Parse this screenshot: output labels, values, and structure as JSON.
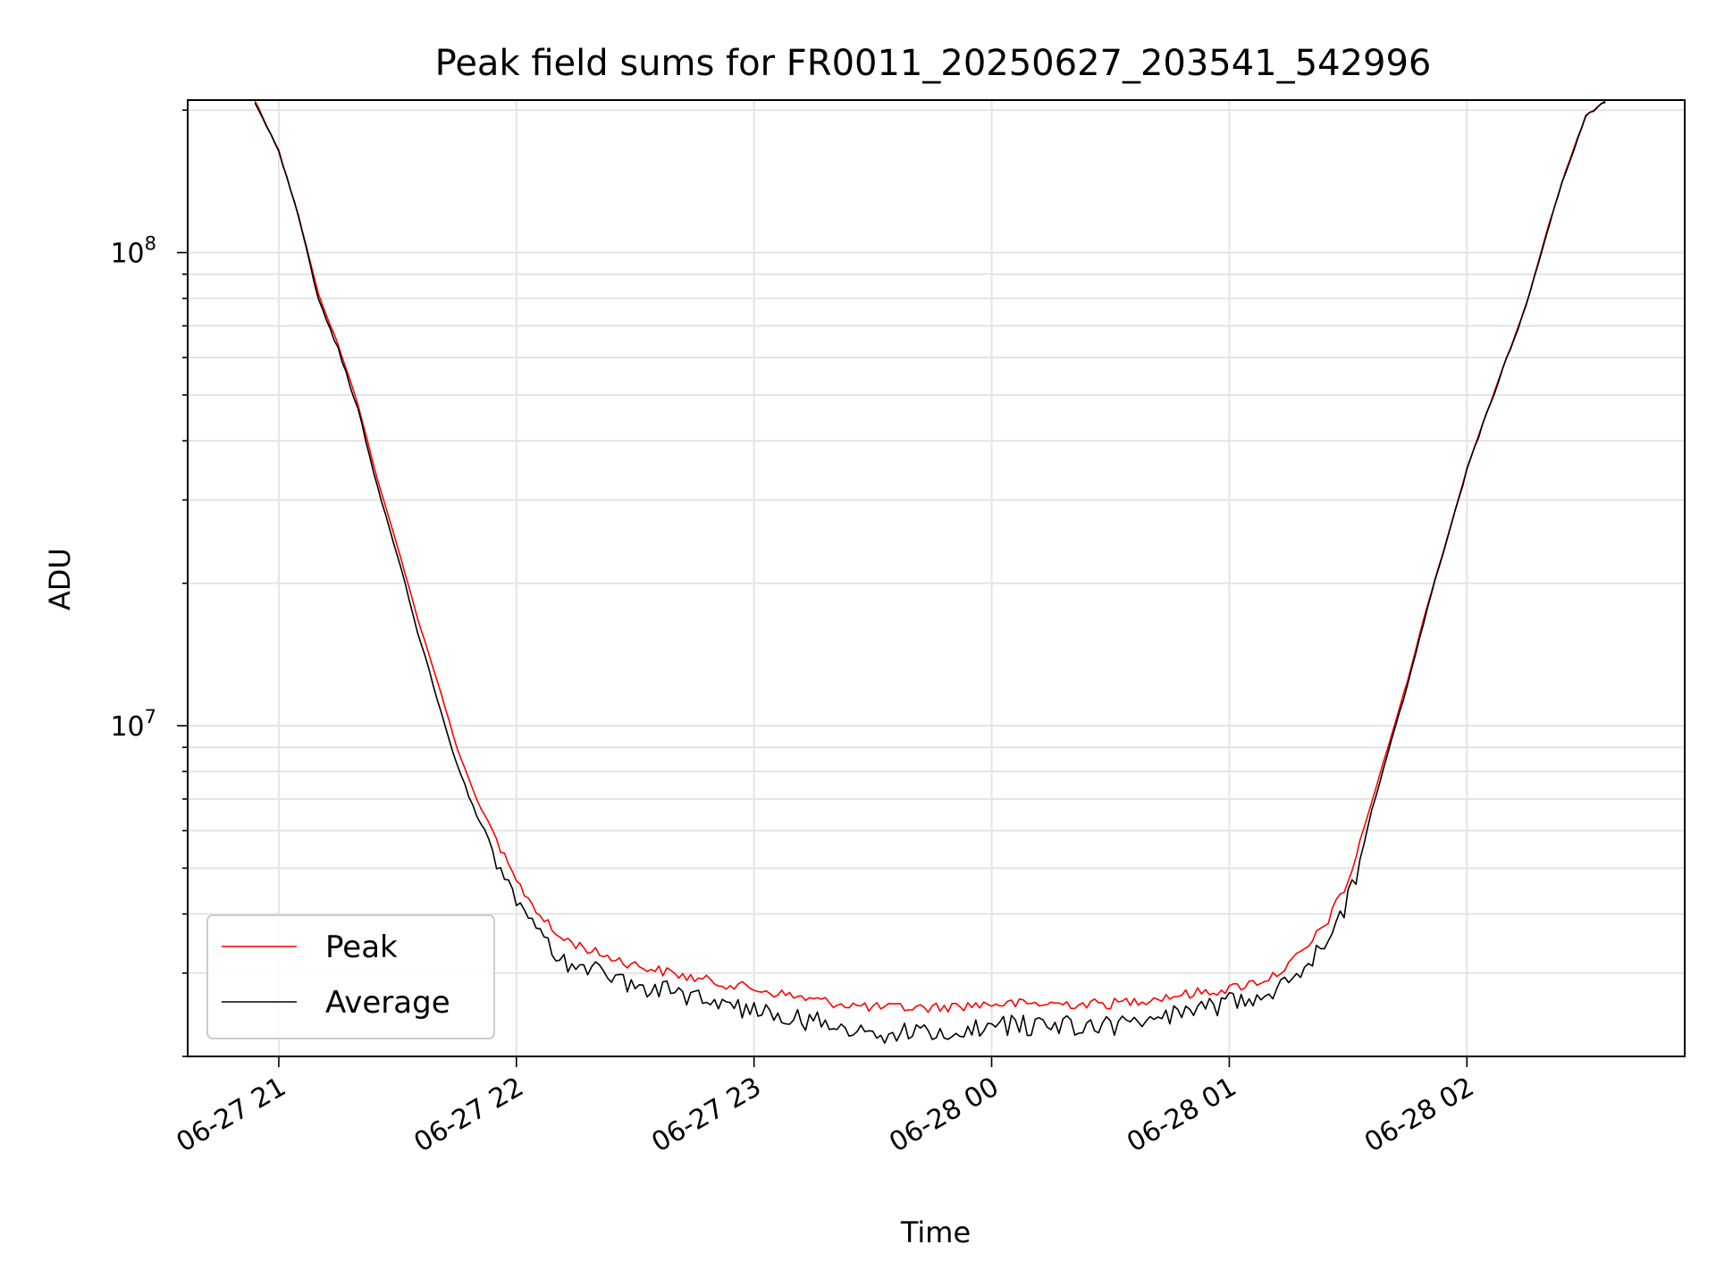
{
  "chart_data": {
    "type": "line",
    "title": "Peak field sums for FR0011_20250627_203541_542996",
    "xlabel": "Time",
    "ylabel": "ADU",
    "y_scale": "log",
    "ylim": [
      2000000,
      210000000
    ],
    "xlim": [
      "2025-06-27 20:37",
      "2025-06-28 02:55"
    ],
    "x_ticks": [
      {
        "value": "2025-06-27 21:00",
        "label": "06-27 21"
      },
      {
        "value": "2025-06-27 22:00",
        "label": "06-27 22"
      },
      {
        "value": "2025-06-27 23:00",
        "label": "06-27 23"
      },
      {
        "value": "2025-06-28 00:00",
        "label": "06-28 00"
      },
      {
        "value": "2025-06-28 01:00",
        "label": "06-28 01"
      },
      {
        "value": "2025-06-28 02:00",
        "label": "06-28 02"
      }
    ],
    "y_ticks": [
      {
        "value": 10000000,
        "base": "10",
        "exp": "7"
      },
      {
        "value": 100000000,
        "base": "10",
        "exp": "8"
      }
    ],
    "grid": true,
    "legend_position": "lower-left",
    "series": [
      {
        "name": "Peak",
        "color": "#ff0000",
        "noise": 0.05,
        "x": [
          "2025-06-27 20:54",
          "2025-06-27 21:00",
          "2025-06-27 21:05",
          "2025-06-27 21:10",
          "2025-06-27 21:15",
          "2025-06-27 21:20",
          "2025-06-27 21:25",
          "2025-06-27 21:30",
          "2025-06-27 21:35",
          "2025-06-27 21:40",
          "2025-06-27 21:45",
          "2025-06-27 21:50",
          "2025-06-27 21:55",
          "2025-06-27 22:00",
          "2025-06-27 22:05",
          "2025-06-27 22:10",
          "2025-06-27 22:20",
          "2025-06-27 22:30",
          "2025-06-27 22:45",
          "2025-06-27 23:00",
          "2025-06-27 23:15",
          "2025-06-27 23:30",
          "2025-06-27 23:45",
          "2025-06-28 00:00",
          "2025-06-28 00:15",
          "2025-06-28 00:30",
          "2025-06-28 00:45",
          "2025-06-28 01:00",
          "2025-06-28 01:10",
          "2025-06-28 01:15",
          "2025-06-28 01:20",
          "2025-06-28 01:25",
          "2025-06-28 01:30",
          "2025-06-28 01:35",
          "2025-06-28 01:40",
          "2025-06-28 01:45",
          "2025-06-28 01:50",
          "2025-06-28 01:55",
          "2025-06-28 02:00",
          "2025-06-28 02:05",
          "2025-06-28 02:10",
          "2025-06-28 02:15",
          "2025-06-28 02:20",
          "2025-06-28 02:25",
          "2025-06-28 02:30",
          "2025-06-28 02:35"
        ],
        "y": [
          210000000,
          165000000,
          120000000,
          82000000,
          64000000,
          48000000,
          33000000,
          24000000,
          17000000,
          12500000,
          9000000,
          7000000,
          5800000,
          4800000,
          4200000,
          3700000,
          3400000,
          3200000,
          3000000,
          2850000,
          2700000,
          2600000,
          2600000,
          2650000,
          2650000,
          2650000,
          2750000,
          2850000,
          3000000,
          3200000,
          3500000,
          4000000,
          4800000,
          6500000,
          9000000,
          12500000,
          18000000,
          25000000,
          35000000,
          46000000,
          60000000,
          78000000,
          110000000,
          150000000,
          195000000,
          210000000
        ]
      },
      {
        "name": "Average",
        "color": "#000000",
        "noise": 0.1,
        "x": [
          "2025-06-27 20:54",
          "2025-06-27 21:00",
          "2025-06-27 21:05",
          "2025-06-27 21:10",
          "2025-06-27 21:15",
          "2025-06-27 21:20",
          "2025-06-27 21:25",
          "2025-06-27 21:30",
          "2025-06-27 21:35",
          "2025-06-27 21:40",
          "2025-06-27 21:45",
          "2025-06-27 21:50",
          "2025-06-27 21:55",
          "2025-06-27 22:00",
          "2025-06-27 22:05",
          "2025-06-27 22:10",
          "2025-06-27 22:20",
          "2025-06-27 22:30",
          "2025-06-27 22:45",
          "2025-06-27 23:00",
          "2025-06-27 23:15",
          "2025-06-27 23:30",
          "2025-06-27 23:45",
          "2025-06-28 00:00",
          "2025-06-28 00:15",
          "2025-06-28 00:30",
          "2025-06-28 00:45",
          "2025-06-28 01:00",
          "2025-06-28 01:10",
          "2025-06-28 01:15",
          "2025-06-28 01:20",
          "2025-06-28 01:25",
          "2025-06-28 01:30",
          "2025-06-28 01:35",
          "2025-06-28 01:40",
          "2025-06-28 01:45",
          "2025-06-28 01:50",
          "2025-06-28 01:55",
          "2025-06-28 02:00",
          "2025-06-28 02:05",
          "2025-06-28 02:10",
          "2025-06-28 02:15",
          "2025-06-28 02:20",
          "2025-06-28 02:25",
          "2025-06-28 02:30",
          "2025-06-28 02:35"
        ],
        "y": [
          210000000,
          165000000,
          120000000,
          80000000,
          63000000,
          47000000,
          32000000,
          23000000,
          16000000,
          11500000,
          8300000,
          6500000,
          5400000,
          4500000,
          3900000,
          3400000,
          3200000,
          3000000,
          2800000,
          2650000,
          2500000,
          2350000,
          2350000,
          2450000,
          2450000,
          2450000,
          2550000,
          2750000,
          2900000,
          3100000,
          3350000,
          3800000,
          4500000,
          6200000,
          8800000,
          12300000,
          17800000,
          25000000,
          35000000,
          46000000,
          60000000,
          78000000,
          110000000,
          150000000,
          195000000,
          210000000
        ]
      }
    ]
  }
}
